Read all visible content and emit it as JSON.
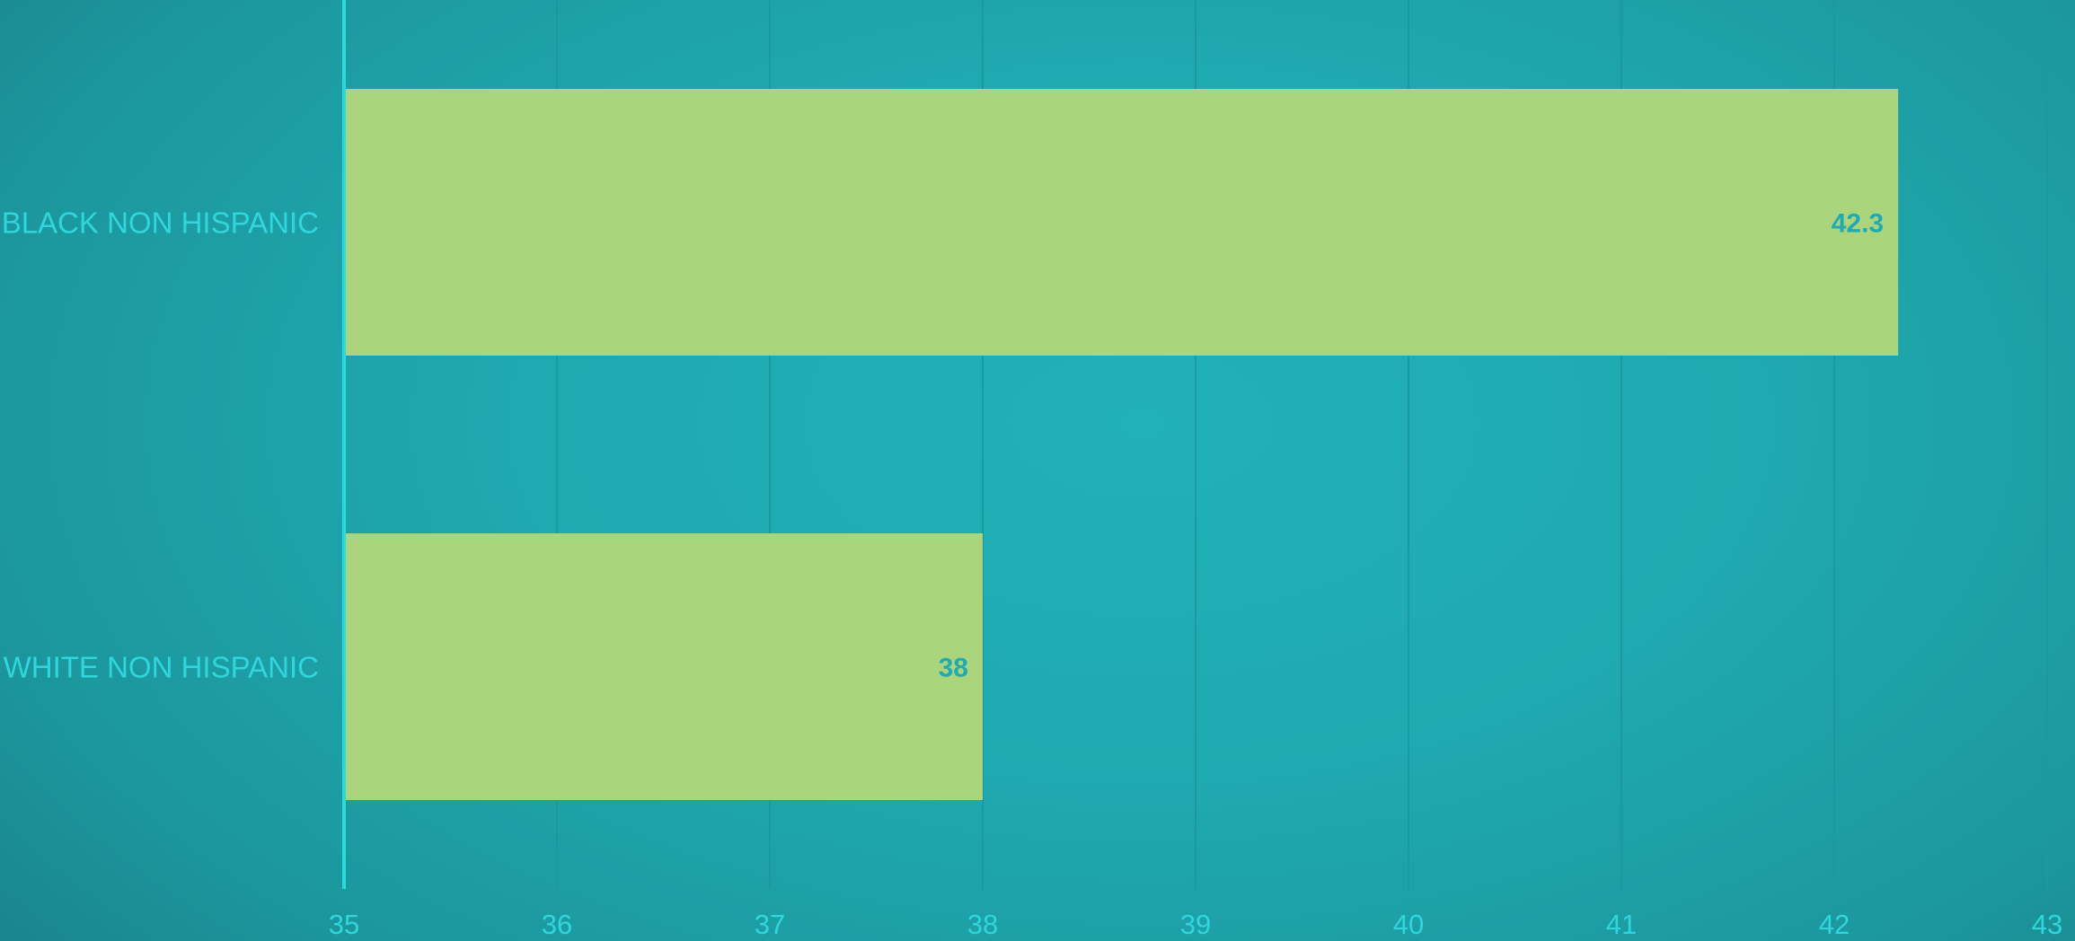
{
  "chart_data": {
    "type": "bar",
    "orientation": "horizontal",
    "categories": [
      "BLACK NON HISPANIC",
      "WHITE NON HISPANIC"
    ],
    "values": [
      42.3,
      38
    ],
    "data_labels": [
      "42.3",
      "38"
    ],
    "xlim": [
      35,
      43
    ],
    "x_ticks": [
      "35",
      "36",
      "37",
      "38",
      "39",
      "40",
      "41",
      "42",
      "43"
    ],
    "grid": true,
    "legend": "none",
    "title": "",
    "xlabel": "",
    "ylabel": ""
  },
  "colors": {
    "background": "#1fa9b0",
    "bar": "#abd57c",
    "axis": "#2ad9dc",
    "labels": "#2fd6dc",
    "data_label": "#22aab2",
    "grid": "#1b98a0"
  }
}
